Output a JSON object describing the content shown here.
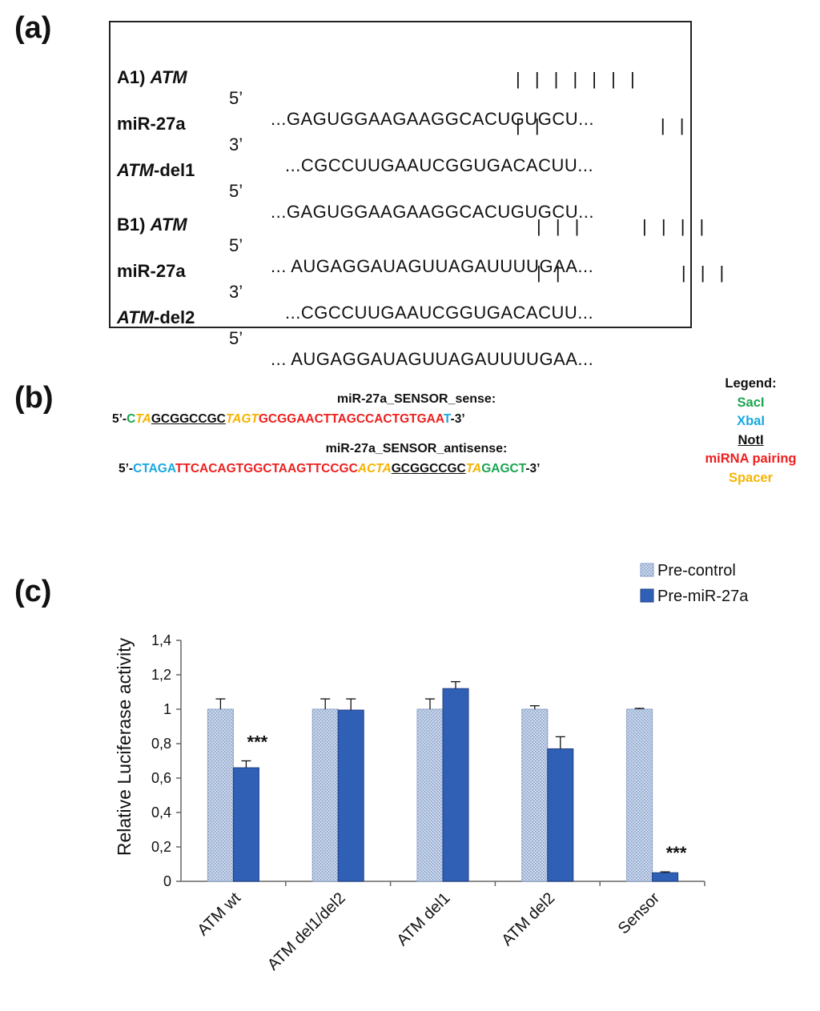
{
  "panels": {
    "a": "(a)",
    "b": "(b)",
    "c": "(c)"
  },
  "alignment": {
    "rows": [
      {
        "name_prefix": "A1) ",
        "name_italic": "ATM",
        "name_suffix": "",
        "end": "5’",
        "seq": "...GAGUGGAAGAAGGCACUGUGCU..."
      },
      {
        "name_prefix": "miR-27a",
        "name_italic": "",
        "name_suffix": "",
        "end": "3’",
        "seq": "...CGCCUUGAAUCGGUGACACUU..."
      },
      {
        "name_prefix": "",
        "name_italic": "ATM",
        "name_suffix": "-del1",
        "end": "5’",
        "seq": "...GAGUGGAAGAAGGCACUGUGCU..."
      },
      {
        "name_prefix": "B1) ",
        "name_italic": "ATM",
        "name_suffix": "",
        "end": "5’",
        "seq": "... AUGAGGAUAGUUAGAUUUUGAA..."
      },
      {
        "name_prefix": "miR-27a",
        "name_italic": "",
        "name_suffix": "",
        "end": "3’",
        "seq": "...CGCCUUGAAUCGGUGACACUU..."
      },
      {
        "name_prefix": "",
        "name_italic": "ATM",
        "name_suffix": "-del2",
        "end": "5’",
        "seq": "... AUGAGGAUAGUUAGAUUUUGAA..."
      }
    ],
    "pair_lines": [
      "| | | | | | |",
      "| |            | |",
      "| | |      | | | |",
      "| |            | | |"
    ]
  },
  "sensor": {
    "sense_title": "miR-27a_SENSOR_sense:",
    "sense_parts": [
      {
        "text": "5’-",
        "color": "black"
      },
      {
        "text": "C",
        "color": "green"
      },
      {
        "text": "TA",
        "color": "orange"
      },
      {
        "text": "GCGGCCGC",
        "color": "black-ul"
      },
      {
        "text": "TAGT",
        "color": "orange"
      },
      {
        "text": "GCGGAACTTAGCCACTGTGAA",
        "color": "red"
      },
      {
        "text": "T",
        "color": "blue"
      },
      {
        "text": "-3’",
        "color": "black"
      }
    ],
    "antisense_title": "miR-27a_SENSOR_antisense:",
    "antisense_parts": [
      {
        "text": "5’-",
        "color": "black"
      },
      {
        "text": "CTAGA",
        "color": "blue"
      },
      {
        "text": "TTCACAGTGGCTAAGTTCCGC",
        "color": "red"
      },
      {
        "text": "ACTA",
        "color": "orange"
      },
      {
        "text": "GCGGCCGC",
        "color": "black-ul"
      },
      {
        "text": "TA",
        "color": "orange"
      },
      {
        "text": "GAGCT",
        "color": "green"
      },
      {
        "text": "-3’",
        "color": "black"
      }
    ],
    "legend_title": "Legend:",
    "legend_items": [
      {
        "text": "SacI",
        "color": "#1aa550"
      },
      {
        "text": "XbaI",
        "color": "#17a8e0"
      },
      {
        "text": "NotI",
        "color": "#111111"
      },
      {
        "text": "miRNA  pairing",
        "color": "#ee2020"
      },
      {
        "text": "Spacer",
        "color": "#f5b400"
      }
    ]
  },
  "chart_data": {
    "type": "bar",
    "ylabel": "Relative Luciferase activity",
    "xlabel": "",
    "ylim": [
      0,
      1.4
    ],
    "yticks": [
      "0",
      "0,2",
      "0,4",
      "0,6",
      "0,8",
      "1",
      "1,2",
      "1,4"
    ],
    "categories": [
      "ATM wt",
      "ATM del1/del2",
      "ATM del1",
      "ATM del2",
      "Sensor"
    ],
    "series": [
      {
        "name": "Pre-control",
        "values": [
          1.0,
          1.0,
          1.0,
          1.0,
          1.0
        ],
        "errors": [
          0.06,
          0.06,
          0.06,
          0.02,
          0.005
        ],
        "color": "#c9d6ea"
      },
      {
        "name": "Pre-miR-27a",
        "values": [
          0.66,
          0.995,
          1.12,
          0.77,
          0.05
        ],
        "errors": [
          0.04,
          0.065,
          0.04,
          0.07,
          0.005
        ],
        "color": "#3060b5"
      }
    ],
    "annotations": [
      {
        "category": "ATM wt",
        "series": "Pre-miR-27a",
        "text": "***"
      },
      {
        "category": "Sensor",
        "series": "Pre-miR-27a",
        "text": "***"
      }
    ],
    "legend_position": "top-right",
    "grid": false
  }
}
